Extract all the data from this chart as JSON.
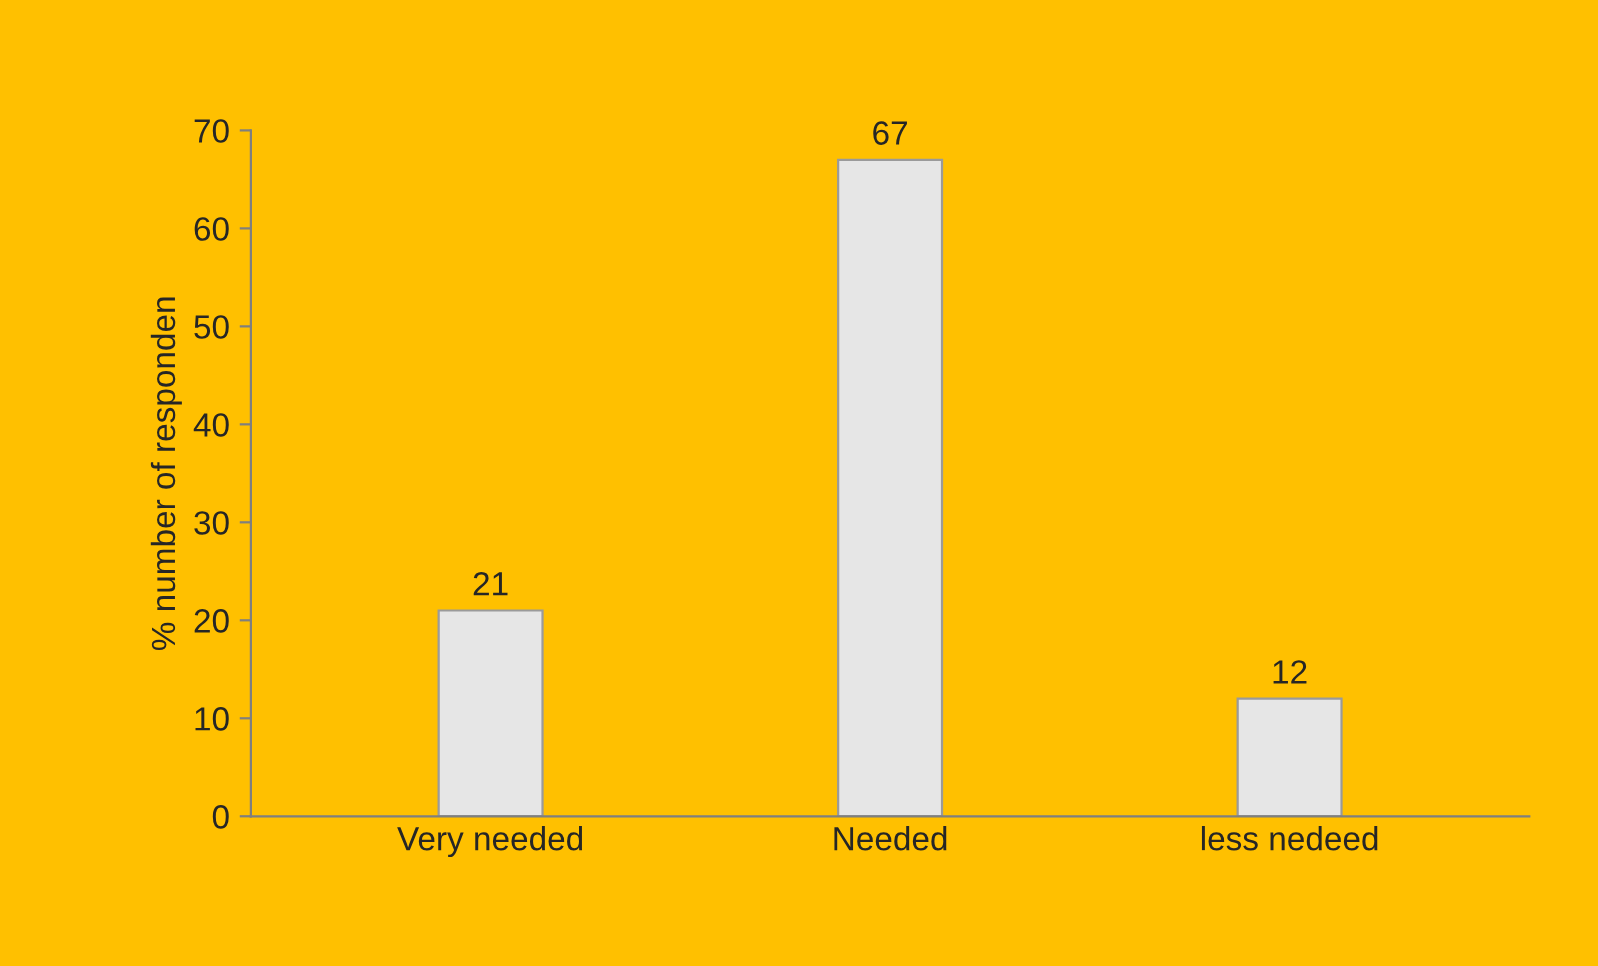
{
  "chart_data": {
    "type": "bar",
    "ylabel": "% number of responden",
    "categories": [
      "Very needed",
      "Needed",
      "less nedeed"
    ],
    "values": [
      21,
      67,
      12
    ],
    "color": "#e6e6e6",
    "ylim": [
      0,
      70
    ],
    "yticks": [
      0,
      10,
      20,
      30,
      40,
      50,
      60,
      70
    ],
    "data_labels": true,
    "grid": false,
    "legend": false
  }
}
